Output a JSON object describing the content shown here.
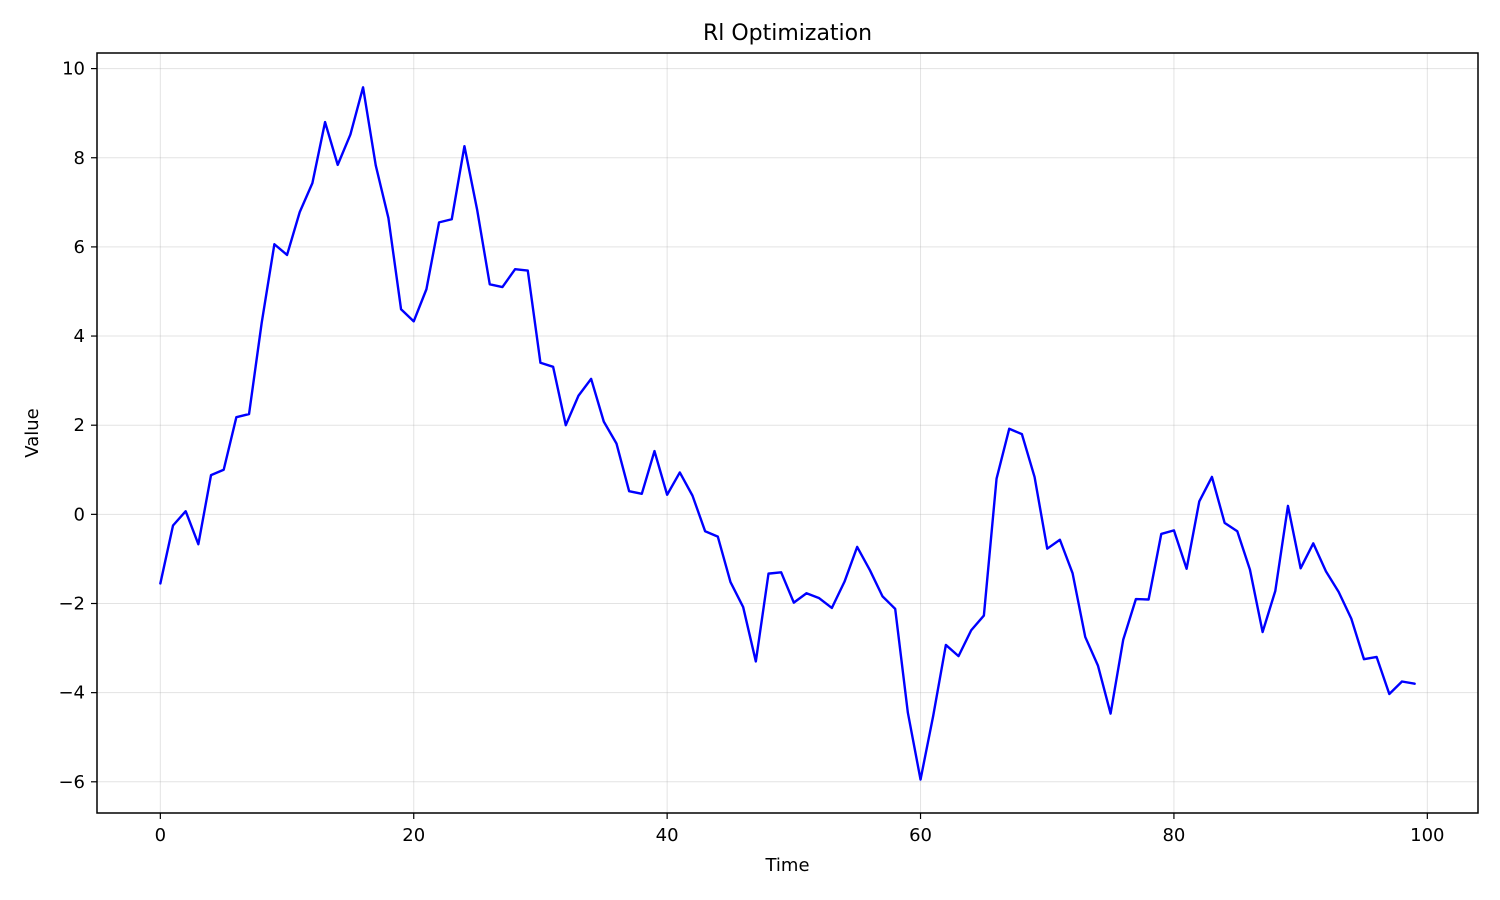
{
  "chart_data": {
    "type": "line",
    "title": "Rl Optimization",
    "xlabel": "Time",
    "ylabel": "Value",
    "xlim": [
      -5,
      104
    ],
    "ylim": [
      -6.7,
      10.35
    ],
    "xticks": [
      0,
      20,
      40,
      60,
      80,
      100
    ],
    "yticks": [
      -6,
      -4,
      -2,
      0,
      2,
      4,
      6,
      8,
      10
    ],
    "grid": true,
    "legend": null,
    "series": [
      {
        "name": "Value",
        "color": "#0000ff",
        "x": [
          0,
          1,
          2,
          3,
          4,
          5,
          6,
          7,
          8,
          9,
          10,
          11,
          12,
          13,
          14,
          15,
          16,
          17,
          18,
          19,
          20,
          21,
          22,
          23,
          24,
          25,
          26,
          27,
          28,
          29,
          30,
          31,
          32,
          33,
          34,
          35,
          36,
          37,
          38,
          39,
          40,
          41,
          42,
          43,
          44,
          45,
          46,
          47,
          48,
          49,
          50,
          51,
          52,
          53,
          54,
          55,
          56,
          57,
          58,
          59,
          60,
          61,
          62,
          63,
          64,
          65,
          66,
          67,
          68,
          69,
          70,
          71,
          72,
          73,
          74,
          75,
          76,
          77,
          78,
          79,
          80,
          81,
          82,
          83,
          84,
          85,
          86,
          87,
          88,
          89,
          90,
          91,
          92,
          93,
          94,
          95,
          96,
          97,
          98,
          99
        ],
        "values": [
          -1.55,
          -0.25,
          0.07,
          -0.67,
          0.88,
          1.0,
          2.18,
          2.25,
          4.3,
          6.06,
          5.82,
          6.78,
          7.43,
          8.8,
          7.84,
          8.52,
          9.58,
          7.83,
          6.65,
          4.6,
          4.33,
          5.05,
          6.55,
          6.62,
          8.26,
          6.84,
          5.16,
          5.1,
          5.5,
          5.47,
          3.4,
          3.31,
          2.0,
          2.66,
          3.04,
          2.08,
          1.59,
          0.52,
          0.46,
          1.42,
          0.44,
          0.94,
          0.42,
          -0.38,
          -0.5,
          -1.52,
          -2.08,
          -3.3,
          -1.33,
          -1.3,
          -1.98,
          -1.77,
          -1.88,
          -2.1,
          -1.51,
          -0.73,
          -1.25,
          -1.84,
          -2.12,
          -4.45,
          -5.95,
          -4.52,
          -2.93,
          -3.18,
          -2.6,
          -2.27,
          0.8,
          1.92,
          1.8,
          0.84,
          -0.77,
          -0.57,
          -1.32,
          -2.75,
          -3.39,
          -4.47,
          -2.81,
          -1.9,
          -1.91,
          -0.44,
          -0.36,
          -1.22,
          0.29,
          0.84,
          -0.19,
          -0.38,
          -1.24,
          -2.64,
          -1.72,
          0.19,
          -1.21,
          -0.65,
          -1.28,
          -1.74,
          -2.34,
          -3.25,
          -3.2,
          -4.03,
          -3.75,
          -3.8
        ]
      }
    ]
  }
}
